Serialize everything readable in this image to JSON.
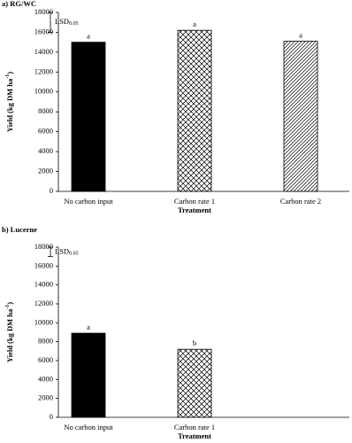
{
  "charts": [
    {
      "type": "bar",
      "title": "a) RG/WC",
      "y_label": {
        "text": "Yield (kg DM ha",
        "sup": "-1",
        "end": ")"
      },
      "x_label": "Treatment",
      "categories": [
        "No carbon input",
        "Carbon rate 1",
        "Carbon rate 2"
      ],
      "values": [
        15000,
        16200,
        15100
      ],
      "letters": [
        "a",
        "a",
        "a"
      ],
      "patterns": [
        "solid",
        "crosshatch",
        "diagonal"
      ],
      "color": "#000000",
      "lsd": {
        "label": "LSD",
        "sub": "0.05",
        "value": 2000
      },
      "ylim": [
        0,
        18000
      ],
      "yticks": [
        0,
        2000,
        4000,
        6000,
        8000,
        10000,
        12000,
        14000,
        16000,
        18000
      ]
    },
    {
      "type": "bar",
      "title": "b) Lucerne",
      "y_label": {
        "text": "Yield (kg DM ha",
        "sup": "-1",
        "end": ")"
      },
      "x_label": "Treatment",
      "categories": [
        "No carbon input",
        "Carbon rate 1",
        null
      ],
      "values": [
        8900,
        7200,
        null
      ],
      "letters": [
        "a",
        "b",
        null
      ],
      "patterns": [
        "solid",
        "crosshatch",
        null
      ],
      "color": "#000000",
      "lsd": {
        "label": "LSD",
        "sub": "0.05",
        "value": 1000
      },
      "ylim": [
        0,
        18000
      ],
      "yticks": [
        0,
        2000,
        4000,
        6000,
        8000,
        10000,
        12000,
        14000,
        16000,
        18000
      ]
    }
  ]
}
